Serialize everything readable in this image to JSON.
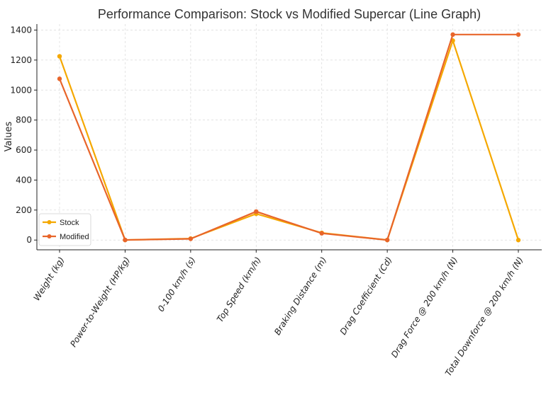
{
  "chart_data": {
    "type": "line",
    "title": "Performance Comparison: Stock vs Modified Supercar (Line Graph)",
    "xlabel": "",
    "ylabel": "Values",
    "categories": [
      "Weight (kg)",
      "Power-to-Weight (HP/kg)",
      "0-100 km/h (s)",
      "Top Speed (km/h)",
      "Braking Distance (m)",
      "Drag Coefficient (Cd)",
      "Drag Force @ 200 km/h (N)",
      "Total Downforce @ 200 km/h (N)"
    ],
    "series": [
      {
        "name": "Stock",
        "color": "#f5a800",
        "values": [
          1225,
          0.6,
          10,
          175,
          48,
          0.35,
          1330,
          0
        ]
      },
      {
        "name": "Modified",
        "color": "#e8652a",
        "values": [
          1075,
          0.7,
          8,
          190,
          45,
          0.3,
          1370,
          1370
        ]
      }
    ],
    "ylim": [
      -65,
      1440
    ],
    "yticks": [
      0,
      200,
      400,
      600,
      800,
      1000,
      1200,
      1400
    ],
    "grid": true,
    "legend_position": "lower-left"
  }
}
